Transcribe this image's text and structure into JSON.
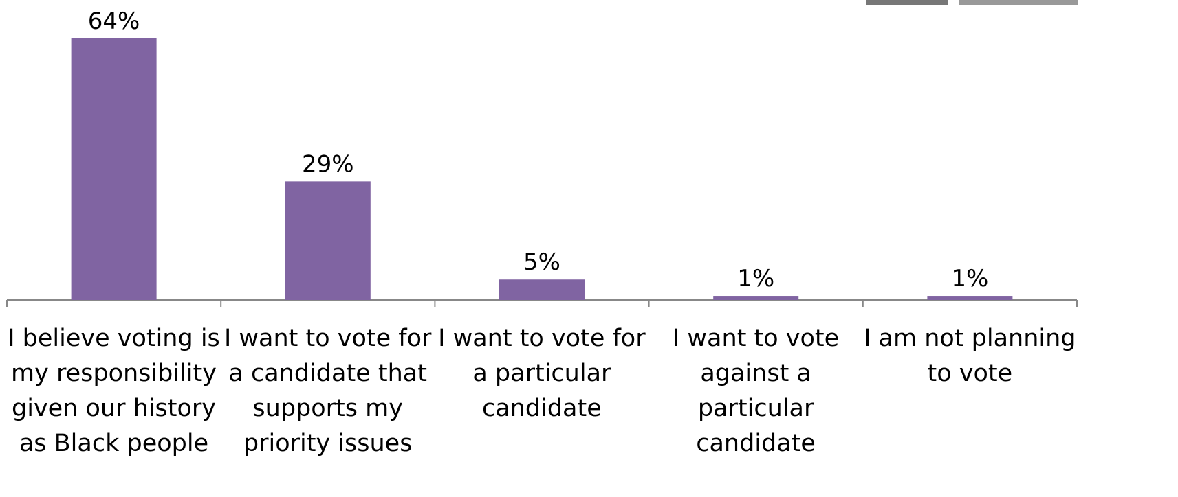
{
  "chart_data": {
    "type": "bar",
    "categories": [
      "I believe voting is my responsibility given our history as Black people",
      "I want to vote for a candidate that supports my priority issues",
      "I want to vote for a particular candidate",
      "I want to vote against a particular candidate",
      "I am not planning to vote"
    ],
    "values": [
      64,
      29,
      5,
      1,
      1
    ],
    "value_labels": [
      "64%",
      "29%",
      "5%",
      "1%",
      "1%"
    ],
    "color": "#8064a2"
  }
}
